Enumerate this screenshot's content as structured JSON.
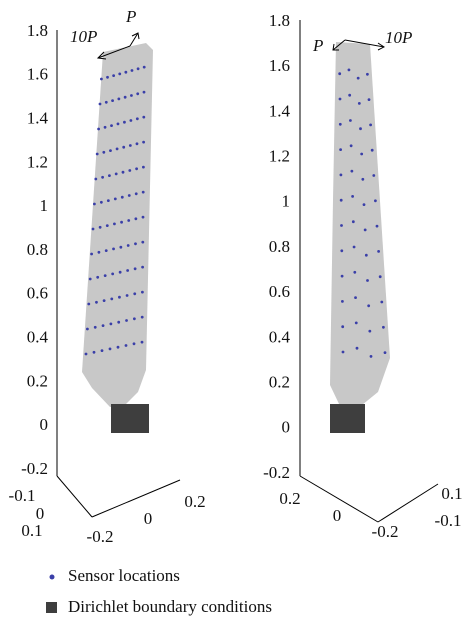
{
  "panels": [
    {
      "z_ticks": [
        -0.2,
        0,
        0.2,
        0.4,
        0.6,
        0.8,
        1,
        1.2,
        1.4,
        1.6,
        1.8
      ],
      "x_ticks": [
        -0.1,
        0,
        0.1
      ],
      "y_ticks": [
        -0.2,
        0,
        0.2
      ],
      "loads": [
        "10P",
        "P"
      ]
    },
    {
      "z_ticks": [
        -0.2,
        0,
        0.2,
        0.4,
        0.6,
        0.8,
        1,
        1.2,
        1.4,
        1.6,
        1.8
      ],
      "x_ticks": [
        0.2,
        0,
        -0.2
      ],
      "y_ticks": [
        0.1,
        -0.1
      ],
      "loads": [
        "P",
        "10P"
      ]
    }
  ],
  "legend": [
    "Sensor locations",
    "Dirichlet boundary conditions"
  ]
}
